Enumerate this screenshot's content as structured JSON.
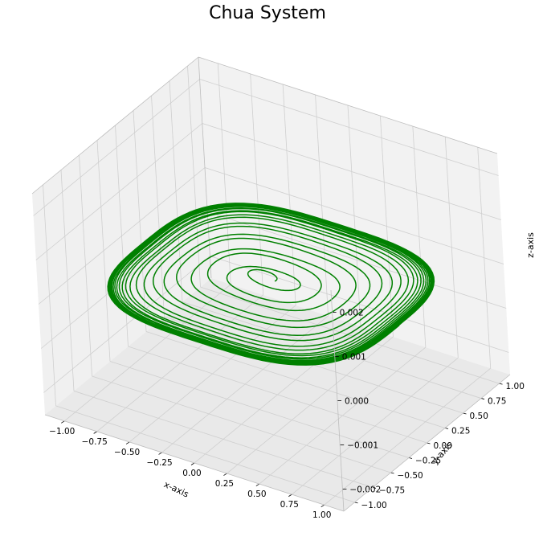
{
  "chart_data": {
    "type": "line3d",
    "title": "Chua System",
    "xlabel": "x-axis",
    "ylabel": "y-axis",
    "zlabel": "z-axis",
    "xlim": [
      -1.15,
      1.15
    ],
    "ylim": [
      -1.15,
      1.15
    ],
    "zlim": [
      -0.0025,
      0.0025
    ],
    "xticks": [
      -1.0,
      -0.75,
      -0.5,
      -0.25,
      0.0,
      0.25,
      0.5,
      0.75,
      1.0
    ],
    "xtick_labels": [
      "−1.00",
      "−0.75",
      "−0.50",
      "−0.25",
      "0.00",
      "0.25",
      "0.50",
      "0.75",
      "1.00"
    ],
    "yticks": [
      -1.0,
      -0.75,
      -0.5,
      -0.25,
      0.0,
      0.25,
      0.5,
      0.75,
      1.0
    ],
    "ytick_labels": [
      "−1.00",
      "−0.75",
      "−0.50",
      "−0.25",
      "0.00",
      "0.25",
      "0.50",
      "0.75",
      "1.00"
    ],
    "zticks": [
      -0.002,
      -0.001,
      0.0,
      0.001,
      0.002
    ],
    "ztick_labels": [
      "−0.002",
      "−0.001",
      "0.000",
      "0.001",
      "0.002"
    ],
    "grid": true,
    "series": [
      {
        "color": "#008000",
        "description": "spiral trajectory in the x-y plane near z=0, growing from a small figure-eight core to a large limit cycle",
        "center": [
          -0.05,
          0.05,
          0.0
        ],
        "r_start": 0.05,
        "r_end": 1.0,
        "turns": 22
      }
    ]
  }
}
